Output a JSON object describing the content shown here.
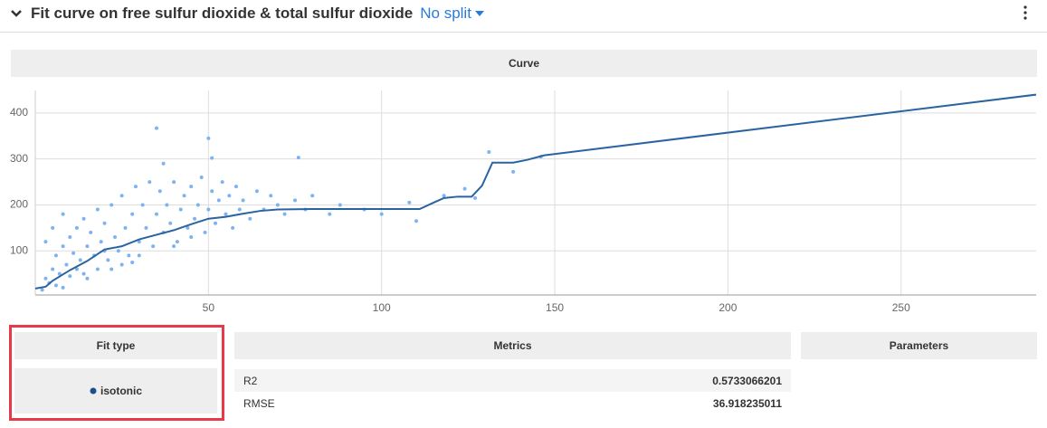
{
  "header": {
    "title": "Fit curve on free sulfur dioxide & total sulfur dioxide",
    "split": "No split"
  },
  "chart_data": {
    "type": "scatter",
    "title": "Curve",
    "xlim": [
      0,
      289
    ],
    "ylim": [
      4,
      449
    ],
    "xticks": [
      50,
      100,
      150,
      200,
      250
    ],
    "yticks": [
      100,
      200,
      300,
      400
    ],
    "grid": true,
    "series": [
      {
        "color": "#7fb2f0",
        "x": [
          2,
          3,
          4,
          5,
          6,
          6,
          7,
          8,
          8,
          9,
          10,
          10,
          11,
          12,
          12,
          13,
          14,
          15,
          15,
          16,
          17,
          18,
          18,
          19,
          20,
          21,
          22,
          23,
          24,
          25,
          26,
          27,
          28,
          29,
          30,
          31,
          32,
          33,
          34,
          35,
          36,
          37,
          38,
          39,
          40,
          41,
          42,
          43,
          44,
          45,
          46,
          47,
          48,
          49,
          50,
          51,
          52,
          53,
          54,
          55,
          56,
          57,
          58,
          59,
          60,
          62,
          64,
          66,
          68,
          70,
          72,
          75,
          78,
          80,
          85,
          88,
          95,
          100,
          108,
          110,
          118,
          124,
          127,
          131,
          138,
          146,
          35,
          50,
          51,
          76,
          37,
          3,
          5,
          8,
          20,
          25,
          30,
          40,
          45,
          14,
          22,
          28
        ],
        "values": [
          15,
          40,
          30,
          60,
          25,
          90,
          50,
          110,
          20,
          70,
          130,
          45,
          95,
          150,
          60,
          80,
          170,
          110,
          40,
          140,
          90,
          190,
          60,
          120,
          160,
          80,
          200,
          130,
          100,
          220,
          150,
          90,
          180,
          240,
          120,
          200,
          150,
          250,
          110,
          180,
          230,
          140,
          200,
          160,
          250,
          120,
          190,
          220,
          150,
          240,
          170,
          200,
          260,
          140,
          190,
          230,
          160,
          210,
          250,
          180,
          220,
          150,
          240,
          190,
          210,
          170,
          230,
          190,
          220,
          200,
          180,
          210,
          190,
          220,
          180,
          200,
          190,
          180,
          205,
          165,
          220,
          235,
          215,
          315,
          272,
          305,
          367,
          345,
          302,
          303,
          290,
          120,
          150,
          180,
          100,
          70,
          90,
          110,
          130,
          50,
          60,
          75
        ]
      },
      {
        "type": "line",
        "color": "#2a64a0",
        "x": [
          0,
          3,
          5,
          10,
          15,
          20,
          25,
          30,
          35,
          40,
          45,
          50,
          55,
          60,
          65,
          70,
          80,
          90,
          100,
          111,
          115,
          118,
          122,
          126,
          129,
          132,
          138,
          142,
          147,
          289
        ],
        "values": [
          18,
          22,
          35,
          58,
          78,
          103,
          110,
          125,
          135,
          145,
          158,
          170,
          174,
          181,
          187,
          190,
          191,
          191,
          191,
          191,
          205,
          215,
          218,
          218,
          242,
          292,
          292,
          298,
          308,
          440
        ]
      }
    ]
  },
  "fit_table": {
    "header": "Fit type",
    "rows": [
      "isotonic"
    ]
  },
  "metrics_table": {
    "header": "Metrics",
    "rows": [
      [
        "R2",
        "0.5733066201"
      ],
      [
        "RMSE",
        "36.918235011"
      ]
    ]
  },
  "parameters_table": {
    "header": "Parameters"
  }
}
